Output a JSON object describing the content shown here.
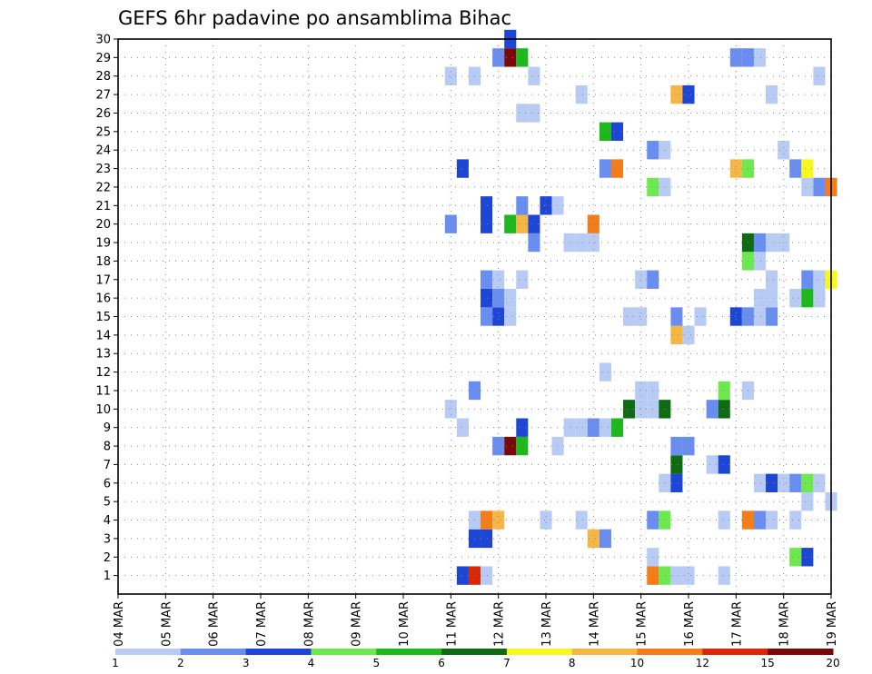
{
  "chart_data": {
    "type": "heatmap",
    "title": "GEFS 6hr padavine po ansamblima Bihac",
    "x_tick_labels": [
      "04 MAR",
      "05 MAR",
      "06 MAR",
      "07 MAR",
      "08 MAR",
      "09 MAR",
      "10 MAR",
      "11 MAR",
      "12 MAR",
      "13 MAR",
      "14 MAR",
      "15 MAR",
      "16 MAR",
      "17 MAR",
      "18 MAR",
      "19 MAR"
    ],
    "y_tick_labels": [
      "1",
      "2",
      "3",
      "4",
      "5",
      "6",
      "7",
      "8",
      "9",
      "10",
      "11",
      "12",
      "13",
      "14",
      "15",
      "16",
      "17",
      "18",
      "19",
      "20",
      "21",
      "22",
      "23",
      "24",
      "25",
      "26",
      "27",
      "28",
      "29",
      "30"
    ],
    "x_unit": "6-hour steps from 04 MAR 00Z",
    "ylim": [
      0,
      30
    ],
    "xlim": [
      0,
      60
    ],
    "grid": true,
    "legend_position": "bottom",
    "legend": {
      "bounds": [
        "1",
        "2",
        "3",
        "4",
        "5",
        "6",
        "7",
        "8",
        "10",
        "12",
        "15",
        "20"
      ],
      "colors": [
        "#b8cbf5",
        "#6a8ef0",
        "#1d46d4",
        "#6ee84f",
        "#1cb81c",
        "#0e6b14",
        "#f8f820",
        "#f5b646",
        "#f47d1a",
        "#d82808",
        "#7a0808"
      ]
    },
    "cells": [
      {
        "x": 29,
        "y": 0,
        "c": 2
      },
      {
        "x": 30,
        "y": 0,
        "c": 9
      },
      {
        "x": 31,
        "y": 0,
        "c": 0
      },
      {
        "x": 45,
        "y": 0,
        "c": 8
      },
      {
        "x": 46,
        "y": 0,
        "c": 3
      },
      {
        "x": 47,
        "y": 0,
        "c": 0
      },
      {
        "x": 48,
        "y": 0,
        "c": 0
      },
      {
        "x": 51,
        "y": 0,
        "c": 0
      },
      {
        "x": 45,
        "y": 1,
        "c": 0
      },
      {
        "x": 57,
        "y": 1,
        "c": 3
      },
      {
        "x": 58,
        "y": 1,
        "c": 2
      },
      {
        "x": 30,
        "y": 2,
        "c": 2
      },
      {
        "x": 31,
        "y": 2,
        "c": 2
      },
      {
        "x": 40,
        "y": 2,
        "c": 7
      },
      {
        "x": 41,
        "y": 2,
        "c": 1
      },
      {
        "x": 30,
        "y": 3,
        "c": 0
      },
      {
        "x": 31,
        "y": 3,
        "c": 8
      },
      {
        "x": 32,
        "y": 3,
        "c": 7
      },
      {
        "x": 36,
        "y": 3,
        "c": 0
      },
      {
        "x": 39,
        "y": 3,
        "c": 0
      },
      {
        "x": 45,
        "y": 3,
        "c": 1
      },
      {
        "x": 46,
        "y": 3,
        "c": 3
      },
      {
        "x": 51,
        "y": 3,
        "c": 0
      },
      {
        "x": 53,
        "y": 3,
        "c": 8
      },
      {
        "x": 54,
        "y": 3,
        "c": 1
      },
      {
        "x": 55,
        "y": 3,
        "c": 0
      },
      {
        "x": 57,
        "y": 3,
        "c": 0
      },
      {
        "x": 58,
        "y": 4,
        "c": 0
      },
      {
        "x": 60,
        "y": 4,
        "c": 0
      },
      {
        "x": 46,
        "y": 5,
        "c": 0
      },
      {
        "x": 47,
        "y": 5,
        "c": 2
      },
      {
        "x": 54,
        "y": 5,
        "c": 0
      },
      {
        "x": 55,
        "y": 5,
        "c": 2
      },
      {
        "x": 56,
        "y": 5,
        "c": 0
      },
      {
        "x": 57,
        "y": 5,
        "c": 1
      },
      {
        "x": 58,
        "y": 5,
        "c": 3
      },
      {
        "x": 59,
        "y": 5,
        "c": 0
      },
      {
        "x": 47,
        "y": 6,
        "c": 5
      },
      {
        "x": 50,
        "y": 6,
        "c": 0
      },
      {
        "x": 51,
        "y": 6,
        "c": 2
      },
      {
        "x": 32,
        "y": 7,
        "c": 1
      },
      {
        "x": 33,
        "y": 7,
        "c": 10
      },
      {
        "x": 34,
        "y": 7,
        "c": 4
      },
      {
        "x": 37,
        "y": 7,
        "c": 0
      },
      {
        "x": 47,
        "y": 7,
        "c": 1
      },
      {
        "x": 48,
        "y": 7,
        "c": 1
      },
      {
        "x": 29,
        "y": 8,
        "c": 0
      },
      {
        "x": 34,
        "y": 8,
        "c": 2
      },
      {
        "x": 38,
        "y": 8,
        "c": 0
      },
      {
        "x": 39,
        "y": 8,
        "c": 0
      },
      {
        "x": 40,
        "y": 8,
        "c": 1
      },
      {
        "x": 41,
        "y": 8,
        "c": 0
      },
      {
        "x": 42,
        "y": 8,
        "c": 4
      },
      {
        "x": 28,
        "y": 9,
        "c": 0
      },
      {
        "x": 43,
        "y": 9,
        "c": 5
      },
      {
        "x": 44,
        "y": 9,
        "c": 0
      },
      {
        "x": 45,
        "y": 9,
        "c": 0
      },
      {
        "x": 46,
        "y": 9,
        "c": 5
      },
      {
        "x": 50,
        "y": 9,
        "c": 1
      },
      {
        "x": 51,
        "y": 9,
        "c": 5
      },
      {
        "x": 30,
        "y": 10,
        "c": 1
      },
      {
        "x": 44,
        "y": 10,
        "c": 0
      },
      {
        "x": 45,
        "y": 10,
        "c": 0
      },
      {
        "x": 51,
        "y": 10,
        "c": 3
      },
      {
        "x": 53,
        "y": 10,
        "c": 0
      },
      {
        "x": 41,
        "y": 11,
        "c": 0
      },
      {
        "x": 47,
        "y": 13,
        "c": 7
      },
      {
        "x": 48,
        "y": 13,
        "c": 0
      },
      {
        "x": 31,
        "y": 14,
        "c": 1
      },
      {
        "x": 32,
        "y": 14,
        "c": 2
      },
      {
        "x": 33,
        "y": 14,
        "c": 0
      },
      {
        "x": 43,
        "y": 14,
        "c": 0
      },
      {
        "x": 44,
        "y": 14,
        "c": 0
      },
      {
        "x": 47,
        "y": 14,
        "c": 1
      },
      {
        "x": 49,
        "y": 14,
        "c": 0
      },
      {
        "x": 52,
        "y": 14,
        "c": 2
      },
      {
        "x": 53,
        "y": 14,
        "c": 1
      },
      {
        "x": 54,
        "y": 14,
        "c": 0
      },
      {
        "x": 55,
        "y": 14,
        "c": 1
      },
      {
        "x": 31,
        "y": 15,
        "c": 2
      },
      {
        "x": 32,
        "y": 15,
        "c": 1
      },
      {
        "x": 33,
        "y": 15,
        "c": 0
      },
      {
        "x": 54,
        "y": 15,
        "c": 0
      },
      {
        "x": 55,
        "y": 15,
        "c": 0
      },
      {
        "x": 57,
        "y": 15,
        "c": 0
      },
      {
        "x": 58,
        "y": 15,
        "c": 4
      },
      {
        "x": 59,
        "y": 15,
        "c": 0
      },
      {
        "x": 31,
        "y": 16,
        "c": 1
      },
      {
        "x": 32,
        "y": 16,
        "c": 0
      },
      {
        "x": 34,
        "y": 16,
        "c": 0
      },
      {
        "x": 44,
        "y": 16,
        "c": 0
      },
      {
        "x": 45,
        "y": 16,
        "c": 1
      },
      {
        "x": 55,
        "y": 16,
        "c": 0
      },
      {
        "x": 58,
        "y": 16,
        "c": 1
      },
      {
        "x": 59,
        "y": 16,
        "c": 0
      },
      {
        "x": 60,
        "y": 16,
        "c": 6
      },
      {
        "x": 53,
        "y": 17,
        "c": 3
      },
      {
        "x": 54,
        "y": 17,
        "c": 0
      },
      {
        "x": 35,
        "y": 18,
        "c": 1
      },
      {
        "x": 38,
        "y": 18,
        "c": 0
      },
      {
        "x": 39,
        "y": 18,
        "c": 0
      },
      {
        "x": 40,
        "y": 18,
        "c": 0
      },
      {
        "x": 53,
        "y": 18,
        "c": 5
      },
      {
        "x": 54,
        "y": 18,
        "c": 1
      },
      {
        "x": 55,
        "y": 18,
        "c": 0
      },
      {
        "x": 56,
        "y": 18,
        "c": 0
      },
      {
        "x": 28,
        "y": 19,
        "c": 1
      },
      {
        "x": 31,
        "y": 19,
        "c": 2
      },
      {
        "x": 33,
        "y": 19,
        "c": 4
      },
      {
        "x": 34,
        "y": 19,
        "c": 7
      },
      {
        "x": 35,
        "y": 19,
        "c": 2
      },
      {
        "x": 40,
        "y": 19,
        "c": 8
      },
      {
        "x": 31,
        "y": 20,
        "c": 2
      },
      {
        "x": 34,
        "y": 20,
        "c": 1
      },
      {
        "x": 36,
        "y": 20,
        "c": 2
      },
      {
        "x": 37,
        "y": 20,
        "c": 0
      },
      {
        "x": 45,
        "y": 21,
        "c": 3
      },
      {
        "x": 46,
        "y": 21,
        "c": 0
      },
      {
        "x": 58,
        "y": 21,
        "c": 0
      },
      {
        "x": 59,
        "y": 21,
        "c": 1
      },
      {
        "x": 60,
        "y": 21,
        "c": 8
      },
      {
        "x": 29,
        "y": 22,
        "c": 2
      },
      {
        "x": 41,
        "y": 22,
        "c": 1
      },
      {
        "x": 42,
        "y": 22,
        "c": 8
      },
      {
        "x": 52,
        "y": 22,
        "c": 7
      },
      {
        "x": 53,
        "y": 22,
        "c": 3
      },
      {
        "x": 57,
        "y": 22,
        "c": 1
      },
      {
        "x": 58,
        "y": 22,
        "c": 6
      },
      {
        "x": 45,
        "y": 23,
        "c": 1
      },
      {
        "x": 46,
        "y": 23,
        "c": 0
      },
      {
        "x": 56,
        "y": 23,
        "c": 0
      },
      {
        "x": 41,
        "y": 24,
        "c": 4
      },
      {
        "x": 42,
        "y": 24,
        "c": 2
      },
      {
        "x": 34,
        "y": 25,
        "c": 0
      },
      {
        "x": 35,
        "y": 25,
        "c": 0
      },
      {
        "x": 39,
        "y": 26,
        "c": 0
      },
      {
        "x": 47,
        "y": 26,
        "c": 7
      },
      {
        "x": 48,
        "y": 26,
        "c": 2
      },
      {
        "x": 55,
        "y": 26,
        "c": 0
      },
      {
        "x": 28,
        "y": 27,
        "c": 0
      },
      {
        "x": 30,
        "y": 27,
        "c": 0
      },
      {
        "x": 35,
        "y": 27,
        "c": 0
      },
      {
        "x": 59,
        "y": 27,
        "c": 0
      },
      {
        "x": 32,
        "y": 28,
        "c": 1
      },
      {
        "x": 33,
        "y": 28,
        "c": 10
      },
      {
        "x": 34,
        "y": 28,
        "c": 4
      },
      {
        "x": 52,
        "y": 28,
        "c": 1
      },
      {
        "x": 53,
        "y": 28,
        "c": 1
      },
      {
        "x": 54,
        "y": 28,
        "c": 0
      },
      {
        "x": 33,
        "y": 29,
        "c": 2
      }
    ]
  }
}
